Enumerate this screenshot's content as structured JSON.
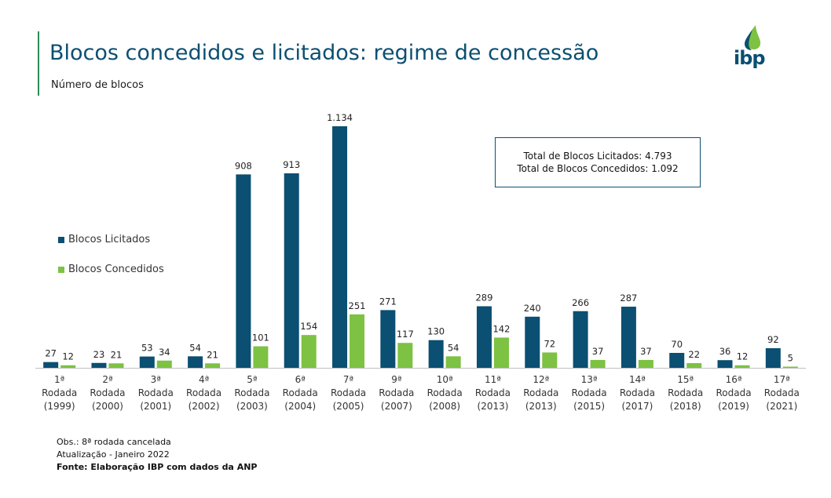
{
  "header": {
    "title": "Blocos concedidos e licitados: regime de concessão",
    "subtitle": "Número de blocos",
    "logo_text": "ibp"
  },
  "colors": {
    "licitados": "#0b4f72",
    "concedidos": "#7dc242",
    "accent": "#2e8b57"
  },
  "totals_box": {
    "line1": "Total de Blocos Licitados: 4.793",
    "line2": "Total de Blocos Concedidos: 1.092"
  },
  "legend": {
    "licitados": "Blocos Licitados",
    "concedidos": "Blocos Concedidos"
  },
  "notes": {
    "obs": "Obs.: 8ª rodada cancelada",
    "update": "Atualização - Janeiro 2022",
    "source": "Fonte: Elaboração IBP com dados da ANP"
  },
  "chart_data": {
    "type": "bar",
    "categories": [
      [
        "1ª",
        "Rodada",
        "(1999)"
      ],
      [
        "2ª",
        "Rodada",
        "(2000)"
      ],
      [
        "3ª",
        "Rodada",
        "(2001)"
      ],
      [
        "4ª",
        "Rodada",
        "(2002)"
      ],
      [
        "5ª",
        "Rodada",
        "(2003)"
      ],
      [
        "6ª",
        "Rodada",
        "(2004)"
      ],
      [
        "7ª",
        "Rodada",
        "(2005)"
      ],
      [
        "9ª",
        "Rodada",
        "(2007)"
      ],
      [
        "10ª",
        "Rodada",
        "(2008)"
      ],
      [
        "11ª",
        "Rodada",
        "(2013)"
      ],
      [
        "12ª",
        "Rodada",
        "(2013)"
      ],
      [
        "13ª",
        "Rodada",
        "(2015)"
      ],
      [
        "14ª",
        "Rodada",
        "(2017)"
      ],
      [
        "15ª",
        "Rodada",
        "(2018)"
      ],
      [
        "16ª",
        "Rodada",
        "(2019)"
      ],
      [
        "17ª",
        "Rodada",
        "(2021)"
      ]
    ],
    "series": [
      {
        "name": "Blocos Licitados",
        "values": [
          27,
          23,
          53,
          54,
          908,
          913,
          1134,
          271,
          130,
          289,
          240,
          266,
          287,
          70,
          36,
          92
        ],
        "labels": [
          "27",
          "23",
          "53",
          "54",
          "908",
          "913",
          "1.134",
          "271",
          "130",
          "289",
          "240",
          "266",
          "287",
          "70",
          "36",
          "92"
        ]
      },
      {
        "name": "Blocos Concedidos",
        "values": [
          12,
          21,
          34,
          21,
          101,
          154,
          251,
          117,
          54,
          142,
          72,
          37,
          37,
          22,
          12,
          5
        ],
        "labels": [
          "12",
          "21",
          "34",
          "21",
          "101",
          "154",
          "251",
          "117",
          "54",
          "142",
          "72",
          "37",
          "37",
          "22",
          "12",
          "5"
        ]
      }
    ],
    "ylim": [
      0,
      1134
    ],
    "legend_position": "left"
  }
}
